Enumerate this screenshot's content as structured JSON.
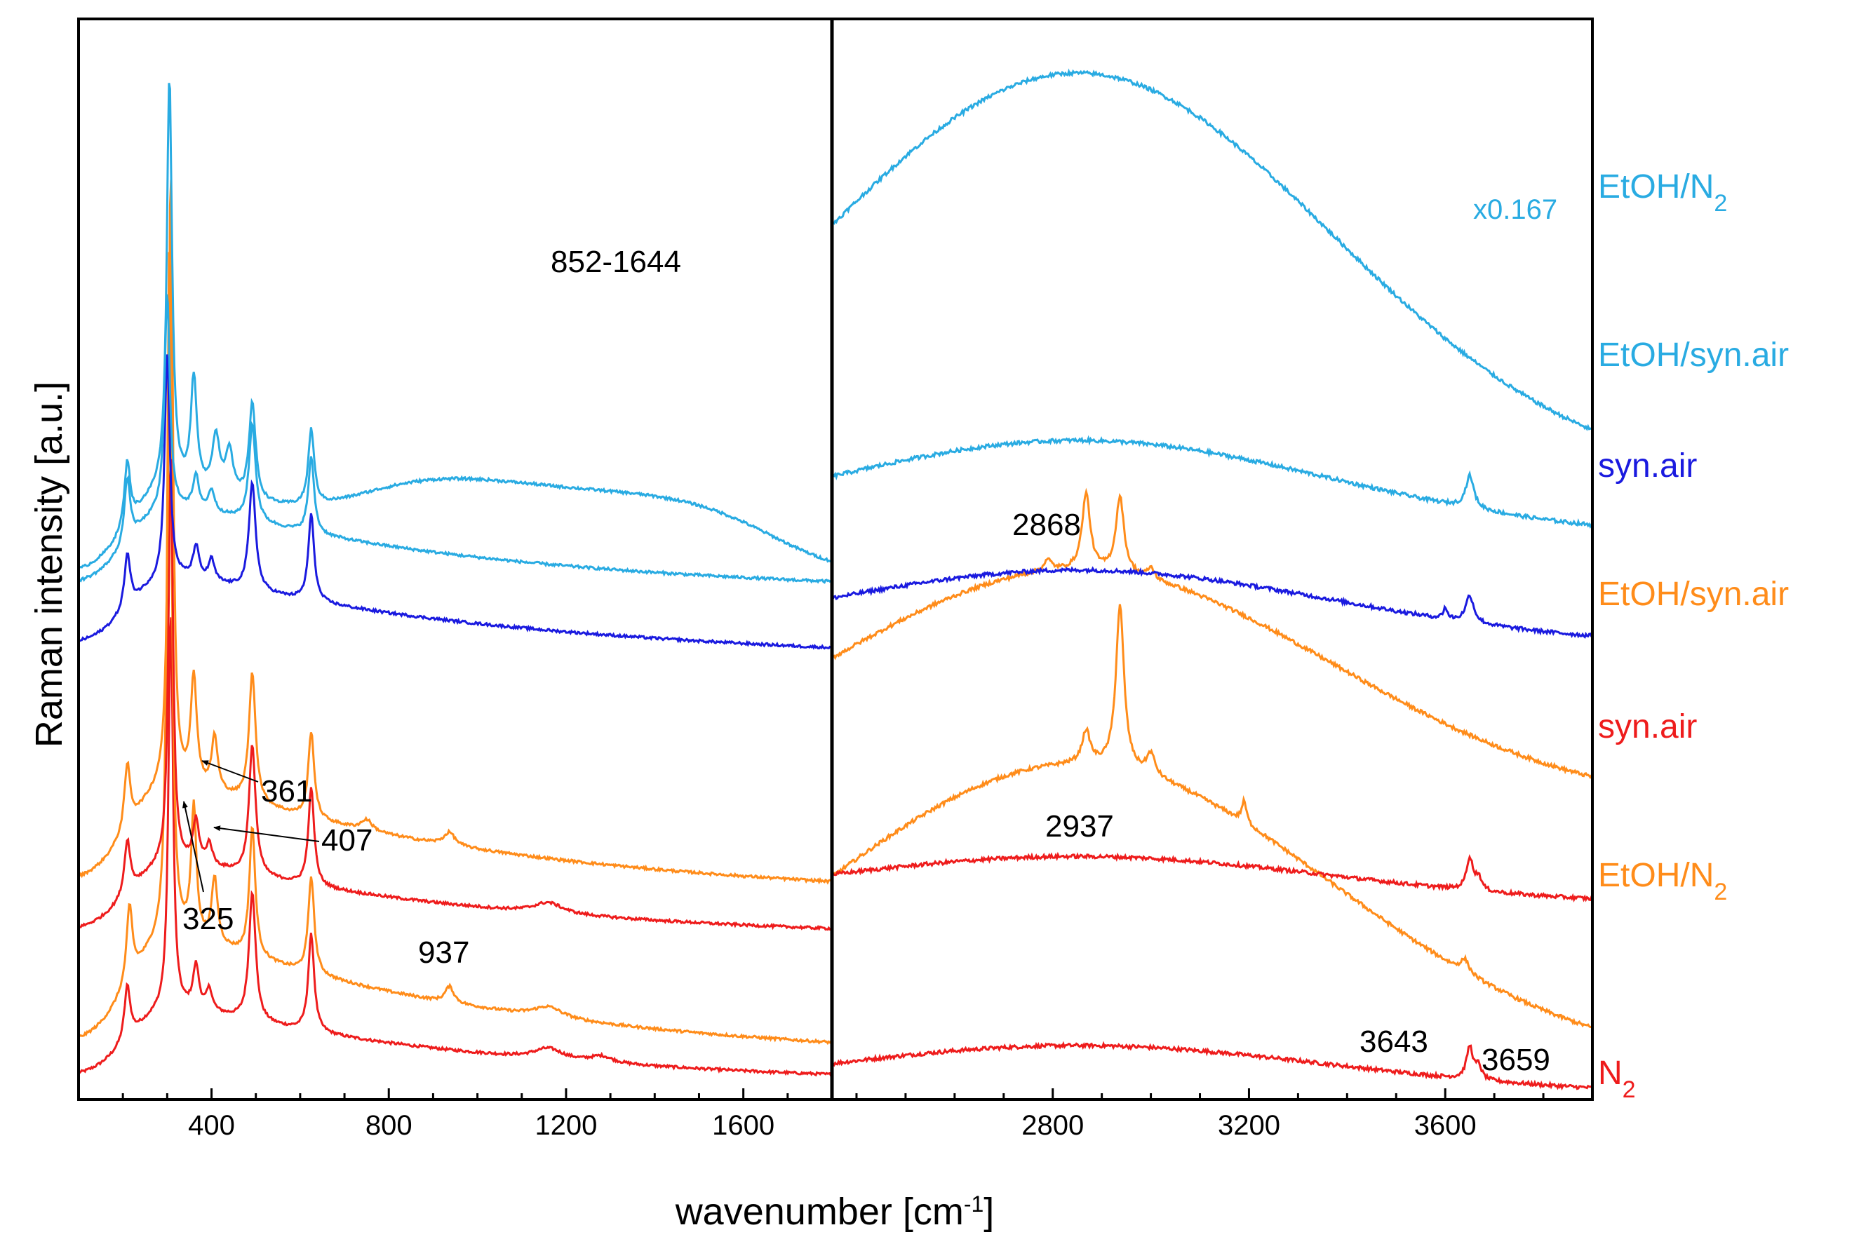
{
  "chart_data": {
    "type": "line",
    "title": "",
    "xlabel": "wavenumber [cm-1]",
    "xlabel_parts": {
      "base": "wavenumber [cm",
      "sup": "-1",
      "close": "]"
    },
    "ylabel": "Raman intensity [a.u.]",
    "grid": false,
    "panels": [
      {
        "name": "left",
        "xlim": [
          100,
          1800
        ],
        "ticks": [
          400,
          800,
          1200,
          1600
        ],
        "tick_labels": [
          "400",
          "800",
          "1200",
          "1600"
        ]
      },
      {
        "name": "right",
        "xlim": [
          2350,
          3900
        ],
        "ticks": [
          2800,
          3200,
          3600
        ],
        "tick_labels": [
          "2800",
          "3200",
          "3600"
        ]
      }
    ],
    "y_range": [
      0,
      100
    ],
    "series": [
      {
        "name": "N2",
        "label_base": "N",
        "label_sub": "2",
        "color": "#ee1c1c",
        "left_baseline": 1.5,
        "left_amp": 7,
        "left_slope": 0.5,
        "left_peaks": [
          [
            210,
            5,
            8
          ],
          [
            308,
            37,
            6
          ],
          [
            365,
            4,
            8
          ],
          [
            395,
            2,
            8
          ],
          [
            492,
            12,
            9
          ],
          [
            625,
            9,
            8
          ],
          [
            1160,
            1,
            40
          ],
          [
            1280,
            0.6,
            30
          ]
        ],
        "right_baseline": 0.5,
        "right_amp": 4.5,
        "right_peaks": [
          [
            3650,
            3,
            8
          ],
          [
            3668,
            1.2,
            7
          ]
        ]
      },
      {
        "name": "EtOH/N2",
        "label_base": "EtOH/N",
        "label_sub": "2",
        "color": "#ff8c1a",
        "left_baseline": 4,
        "left_amp": 11,
        "left_slope": 1,
        "left_peaks": [
          [
            215,
            7,
            8
          ],
          [
            305,
            65,
            6
          ],
          [
            360,
            12,
            7
          ],
          [
            407,
            6,
            8
          ],
          [
            492,
            12,
            8
          ],
          [
            625,
            9,
            8
          ],
          [
            937,
            1.5,
            12
          ],
          [
            1160,
            1,
            40
          ]
        ],
        "right_baseline": 3,
        "right_amp": 28,
        "right_peaks": [
          [
            2868,
            3,
            10
          ],
          [
            2937,
            15,
            10
          ],
          [
            3000,
            2,
            10
          ],
          [
            3190,
            2,
            6
          ],
          [
            3640,
            1.2,
            10
          ]
        ]
      },
      {
        "name": "syn.air",
        "label": "syn.air",
        "color": "#ee1c1c",
        "left_baseline": 15,
        "left_amp": 7,
        "left_slope": 0.5,
        "left_peaks": [
          [
            210,
            5,
            8
          ],
          [
            308,
            38,
            6
          ],
          [
            365,
            4,
            8
          ],
          [
            395,
            2,
            8
          ],
          [
            492,
            12,
            9
          ],
          [
            625,
            9,
            8
          ],
          [
            1160,
            1,
            40
          ]
        ],
        "right_baseline": 18,
        "right_amp": 4.5,
        "right_peaks": [
          [
            3650,
            3,
            8
          ],
          [
            3668,
            1.2,
            7
          ]
        ]
      },
      {
        "name": "EtOH/syn.air",
        "label": "EtOH/syn.air",
        "color": "#ff8c1a",
        "left_baseline": 19,
        "left_amp": 10,
        "left_slope": 1,
        "left_peaks": [
          [
            210,
            6,
            8
          ],
          [
            308,
            57,
            6
          ],
          [
            360,
            10,
            8
          ],
          [
            407,
            5,
            8
          ],
          [
            492,
            12,
            9
          ],
          [
            625,
            8,
            8
          ],
          [
            750,
            1,
            15
          ],
          [
            937,
            1.2,
            15
          ]
        ],
        "right_baseline": 27,
        "right_amp": 22,
        "right_peaks": [
          [
            2790,
            1,
            10
          ],
          [
            2868,
            7,
            10
          ],
          [
            2937,
            7,
            10
          ],
          [
            3000,
            1,
            8
          ]
        ]
      },
      {
        "name": "syn.air",
        "label": "syn.air",
        "color": "#1a1adf",
        "left_baseline": 41,
        "left_amp": 7,
        "left_slope": 1,
        "left_peaks": [
          [
            210,
            5,
            8
          ],
          [
            300,
            21,
            7
          ],
          [
            365,
            3,
            8
          ],
          [
            400,
            2,
            8
          ],
          [
            492,
            10,
            9
          ],
          [
            625,
            8,
            8
          ]
        ],
        "right_baseline": 42,
        "right_amp": 7,
        "right_peaks": [
          [
            3600,
            1,
            5
          ],
          [
            3650,
            2.5,
            10
          ]
        ]
      },
      {
        "name": "EtOH/syn.air",
        "label": "EtOH/syn.air",
        "color": "#29abe2",
        "left_baseline": 47,
        "left_amp": 8,
        "left_slope": 0.5,
        "left_peaks": [
          [
            210,
            6,
            8
          ],
          [
            300,
            20,
            7
          ],
          [
            365,
            3,
            8
          ],
          [
            400,
            2,
            8
          ],
          [
            492,
            9,
            9
          ],
          [
            625,
            7,
            8
          ]
        ],
        "right_baseline": 52,
        "right_amp": 9,
        "right_peaks": [
          [
            3650,
            3,
            10
          ]
        ]
      },
      {
        "name": "EtOH/N2",
        "label_base": "EtOH/N",
        "label_sub": "2",
        "color": "#29abe2",
        "left_baseline": 48,
        "left_amp": 9,
        "left_slope": 0.5,
        "left_peaks": [
          [
            210,
            6,
            8
          ],
          [
            305,
            38,
            7
          ],
          [
            360,
            10,
            8
          ],
          [
            410,
            5,
            10
          ],
          [
            440,
            4,
            10
          ],
          [
            492,
            9,
            9
          ],
          [
            625,
            7,
            8
          ]
        ],
        "left_broad": [
          [
            1200,
            6,
            420
          ]
        ],
        "right_baseline": 57,
        "right_amp": 38,
        "right_peaks": [],
        "right_scale_label": "x0.167"
      }
    ],
    "annotations": [
      {
        "text": "852-1644",
        "panel": "left"
      },
      {
        "text": "361",
        "panel": "left",
        "arrow": true
      },
      {
        "text": "407",
        "panel": "left",
        "arrow": true
      },
      {
        "text": "325",
        "panel": "left",
        "arrow": true
      },
      {
        "text": "937",
        "panel": "left"
      },
      {
        "text": "2868",
        "panel": "right"
      },
      {
        "text": "2937",
        "panel": "right"
      },
      {
        "text": "3643",
        "panel": "right"
      },
      {
        "text": "3659",
        "panel": "right"
      }
    ]
  }
}
